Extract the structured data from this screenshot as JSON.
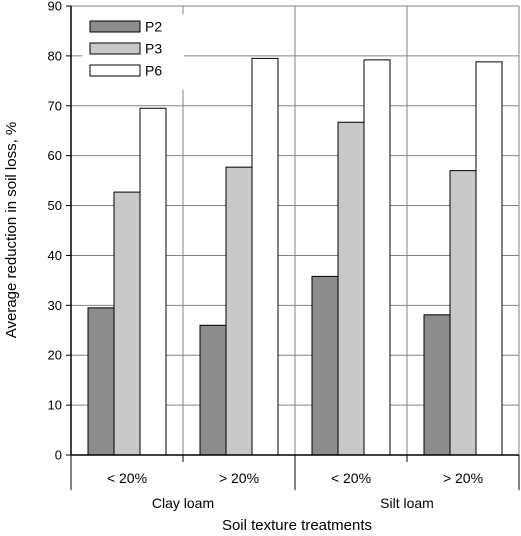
{
  "chart_data": {
    "type": "bar",
    "xlabel": "Soil texture treatments",
    "ylabel": "Average reduction in soil loss, %",
    "ylim": [
      0,
      90
    ],
    "yticks": [
      0,
      10,
      20,
      30,
      40,
      50,
      60,
      70,
      80,
      90
    ],
    "grid": true,
    "legend_position": "top-left",
    "groups": [
      "Clay loam",
      "Silt loam"
    ],
    "categories": [
      "< 20%",
      "> 20%",
      "< 20%",
      "> 20%"
    ],
    "series": [
      {
        "name": "P2",
        "color": "#8c8c8c",
        "values": [
          29.5,
          26.0,
          35.8,
          28.1
        ]
      },
      {
        "name": "P3",
        "color": "#c8c8c8",
        "values": [
          52.7,
          57.7,
          66.7,
          57.0
        ]
      },
      {
        "name": "P6",
        "color": "#ffffff",
        "values": [
          69.5,
          79.5,
          79.2,
          78.8
        ]
      }
    ]
  }
}
